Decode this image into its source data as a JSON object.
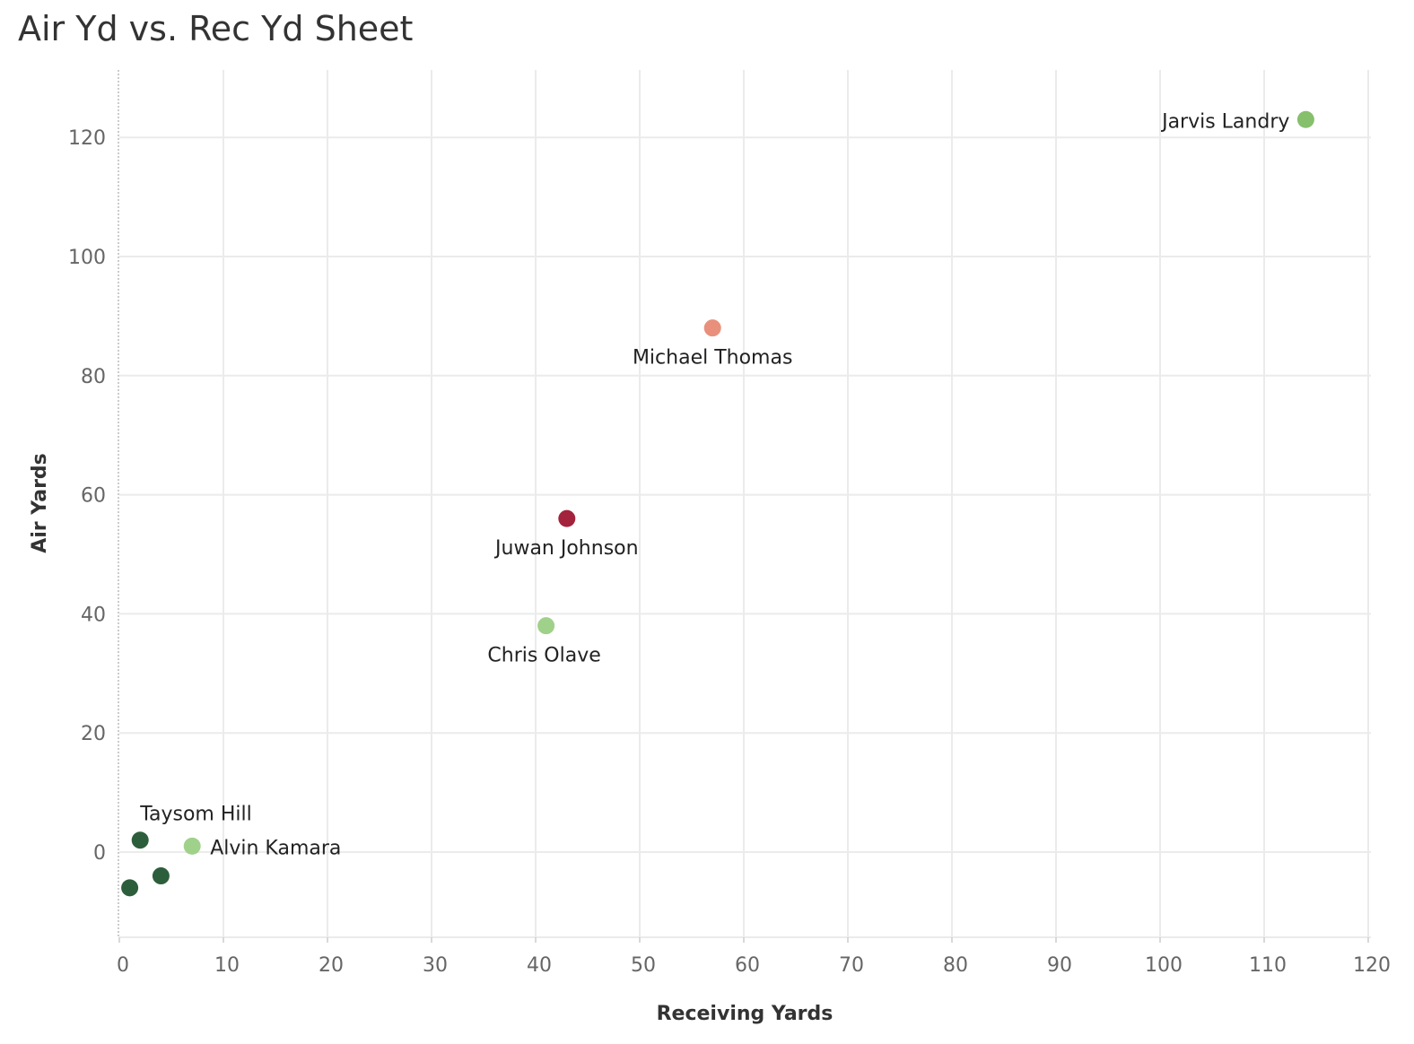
{
  "title": "Air Yd vs. Rec Yd Sheet",
  "chart_data": {
    "type": "scatter",
    "title": "Air Yd vs. Rec Yd Sheet",
    "xlabel": "Receiving Yards",
    "ylabel": "Air Yards",
    "xlim": [
      0,
      120
    ],
    "ylim": [
      -14,
      130
    ],
    "xticks": [
      0,
      10,
      20,
      30,
      40,
      50,
      60,
      70,
      80,
      90,
      100,
      110,
      120
    ],
    "yticks": [
      0,
      20,
      40,
      60,
      80,
      100,
      120
    ],
    "grid": true,
    "points": [
      {
        "x": 114,
        "y": 123,
        "label": "Jarvis Landry",
        "color": "#86c06c"
      },
      {
        "x": 57,
        "y": 88,
        "label": "Michael Thomas",
        "color": "#e8907c"
      },
      {
        "x": 43,
        "y": 56,
        "label": "Juwan Johnson",
        "color": "#a3233c"
      },
      {
        "x": 41,
        "y": 38,
        "label": "Chris Olave",
        "color": "#9fd18a"
      },
      {
        "x": 2,
        "y": 2,
        "label": "Taysom Hill",
        "color": "#2d5e3c"
      },
      {
        "x": 7,
        "y": 1,
        "label": "Alvin Kamara",
        "color": "#9fd18a"
      },
      {
        "x": 4,
        "y": -4,
        "label": "",
        "color": "#2d5e3c"
      },
      {
        "x": 1,
        "y": -6,
        "label": "",
        "color": "#2d5e3c"
      }
    ]
  }
}
